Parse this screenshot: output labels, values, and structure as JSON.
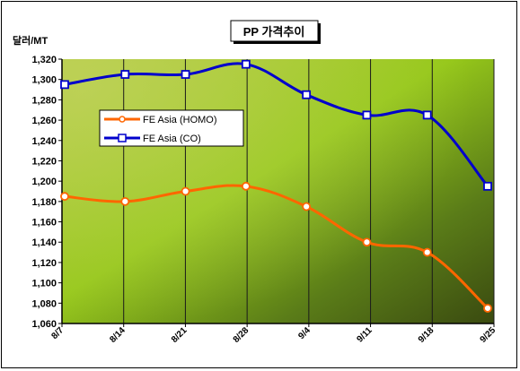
{
  "chart_data": {
    "type": "line",
    "title": "PP 가격추이",
    "ylabel": "달러/MT",
    "xlabel": "",
    "categories": [
      "8/7",
      "8/14",
      "8/21",
      "8/28",
      "9/4",
      "9/11",
      "9/18",
      "9/25"
    ],
    "ylim": [
      1060,
      1320
    ],
    "ytick_step": 20,
    "yticks": [
      "1,060",
      "1,080",
      "1,100",
      "1,120",
      "1,140",
      "1,160",
      "1,180",
      "1,200",
      "1,220",
      "1,240",
      "1,260",
      "1,280",
      "1,300",
      "1,320"
    ],
    "grid": "vertical",
    "legend_position": "upper-left inside plot",
    "series": [
      {
        "name": "FE Asia (HOMO)",
        "color": "#ff6600",
        "marker": "circle",
        "values": [
          1185,
          1180,
          1190,
          1195,
          1175,
          1140,
          1130,
          1075
        ]
      },
      {
        "name": "FE Asia (CO)",
        "color": "#0000cc",
        "marker": "square",
        "values": [
          1295,
          1305,
          1305,
          1315,
          1285,
          1265,
          1265,
          1195
        ]
      }
    ]
  }
}
